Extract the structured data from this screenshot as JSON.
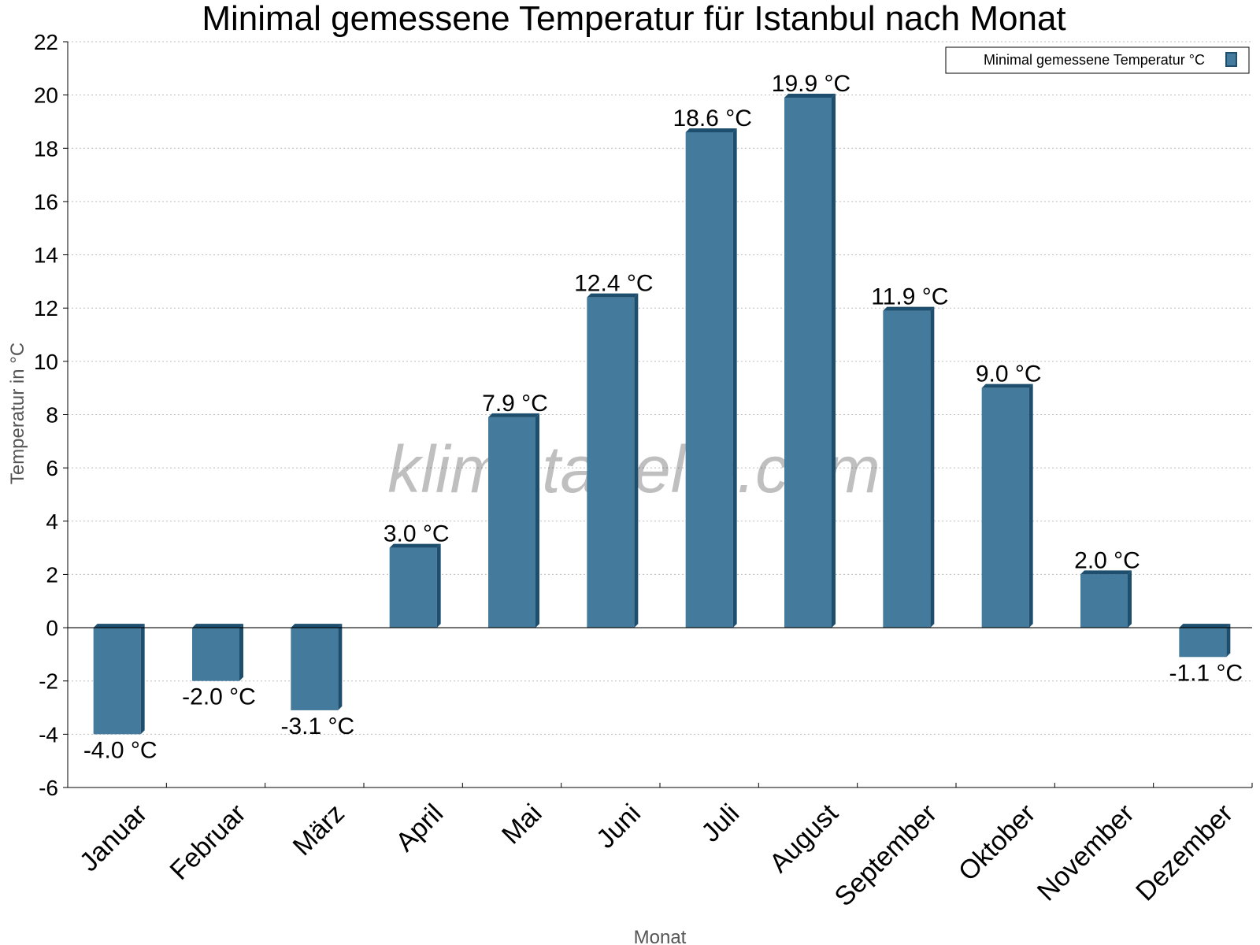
{
  "chart_data": {
    "type": "bar",
    "title": "Minimal gemessene Temperatur für Istanbul nach Monat",
    "xlabel": "Monat",
    "ylabel": "Temperatur in °C",
    "categories": [
      "Januar",
      "Februar",
      "März",
      "April",
      "Mai",
      "Juni",
      "Juli",
      "August",
      "September",
      "Oktober",
      "November",
      "Dezember"
    ],
    "series": [
      {
        "name": "Minimal gemessene Temperatur °C",
        "values": [
          -4.0,
          -2.0,
          -3.1,
          3.0,
          7.9,
          12.4,
          18.6,
          19.9,
          11.9,
          9.0,
          2.0,
          -1.1
        ],
        "labels": [
          "-4.0 °C",
          "-2.0 °C",
          "-3.1 °C",
          "3.0 °C",
          "7.9 °C",
          "12.4 °C",
          "18.6 °C",
          "19.9 °C",
          "11.9 °C",
          "9.0 °C",
          "2.0 °C",
          "-1.1 °C"
        ]
      }
    ],
    "ylim": [
      -6,
      22
    ],
    "yticks": [
      -6,
      -4,
      -2,
      0,
      2,
      4,
      6,
      8,
      10,
      12,
      14,
      16,
      18,
      20,
      22
    ],
    "grid": true,
    "legend": "top-right",
    "watermark": "klimatabelle.com",
    "colors": {
      "bar": "#447a9c",
      "bar_side": "#1d4e6e"
    }
  }
}
